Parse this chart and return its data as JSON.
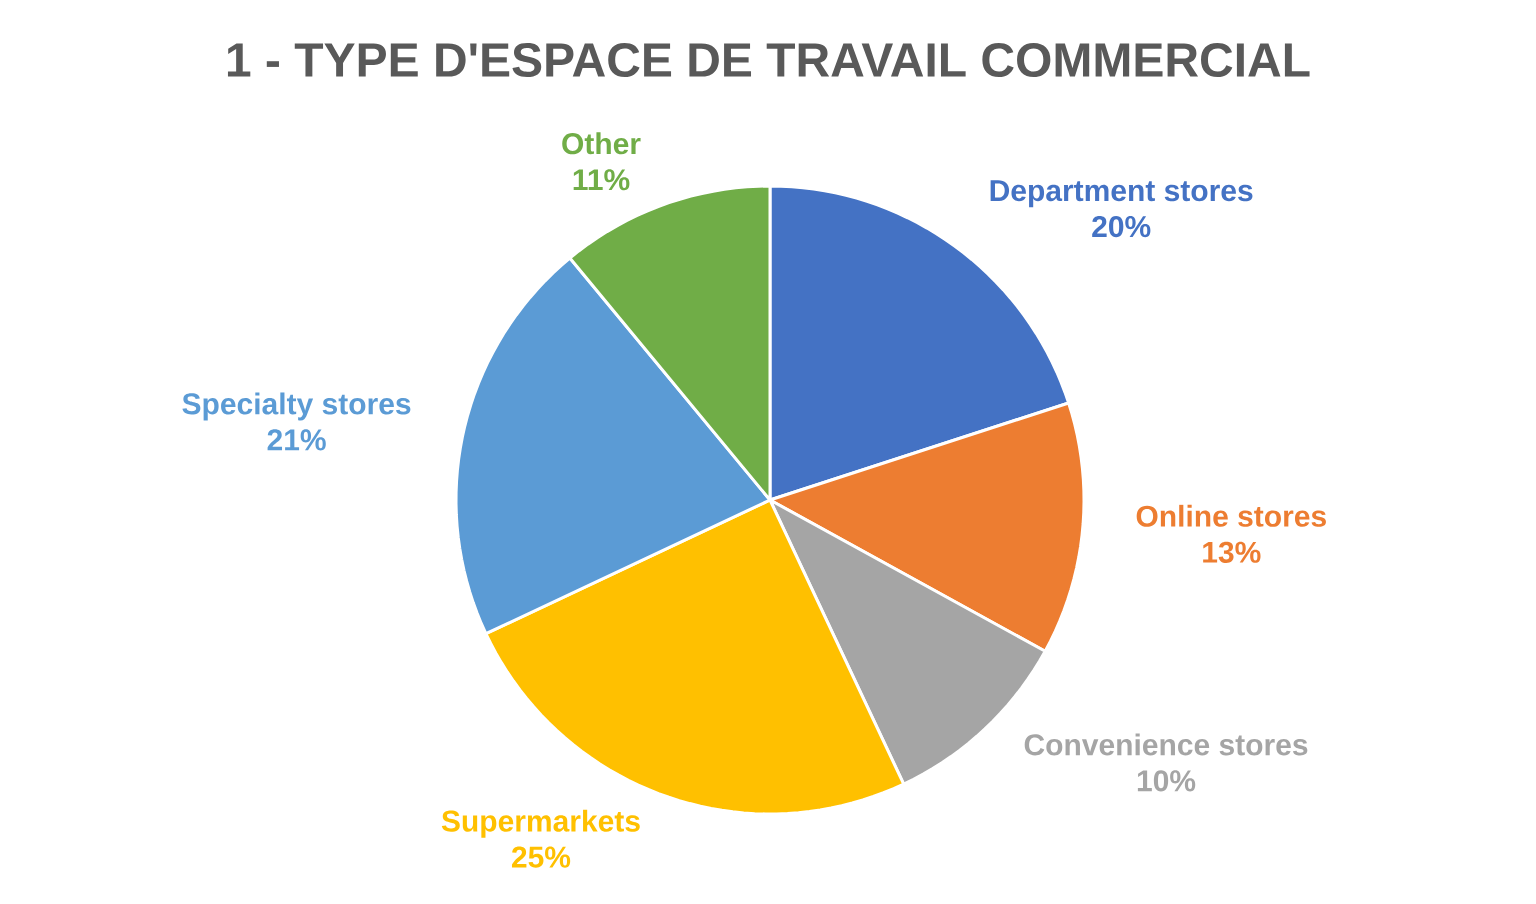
{
  "chart_data": {
    "type": "pie",
    "title": "1 - TYPE D'ESPACE DE TRAVAIL COMMERCIAL",
    "categories": [
      "Department stores",
      "Online stores",
      "Convenience stores",
      "Supermarkets",
      "Specialty stores",
      "Other"
    ],
    "values": [
      20,
      13,
      10,
      25,
      21,
      11
    ],
    "value_labels": [
      "20%",
      "13%",
      "10%",
      "25%",
      "21%",
      "11%"
    ],
    "colors": [
      "#4472c4",
      "#ed7d31",
      "#a5a5a5",
      "#ffc000",
      "#5b9bd5",
      "#70ad47"
    ]
  }
}
